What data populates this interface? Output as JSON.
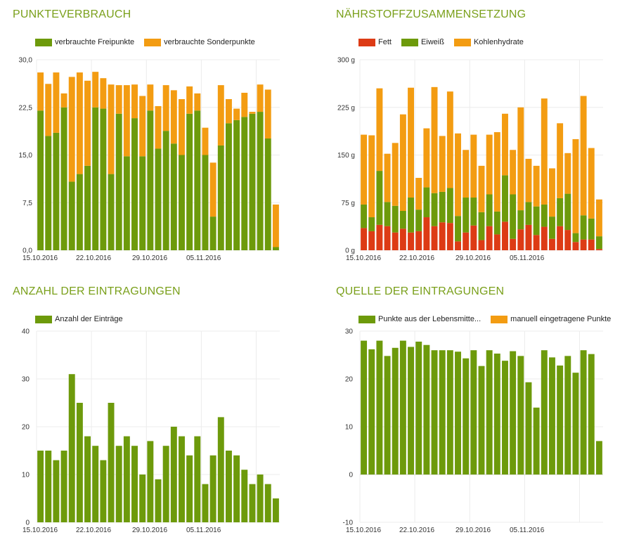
{
  "colors": {
    "green": "#6d9a0b",
    "orange": "#f39c12",
    "red": "#dd3b15",
    "title": "#7aa01b",
    "grid": "#ececec"
  },
  "chart_data": [
    {
      "id": "punkteverbrauch",
      "title": "PUNKTEVERBRAUCH",
      "type": "bar",
      "stacked": true,
      "legend": [
        "verbrauchte Freipunkte",
        "verbrauchte Sonderpunkte"
      ],
      "x_tick_labels": [
        "15.10.2016",
        "22.10.2016",
        "29.10.2016",
        "05.11.2016"
      ],
      "y_tick_labels": [
        "30,0",
        "22,5",
        "15,0",
        "7,5",
        "0,0"
      ],
      "ylim": [
        0,
        30
      ],
      "grid": true,
      "series": [
        {
          "name": "verbrauchte Freipunkte",
          "color": "#6d9a0b",
          "values": [
            22,
            18,
            18.5,
            22.5,
            10.8,
            12,
            13.3,
            22.5,
            22.3,
            12,
            21.5,
            14.8,
            20.8,
            14.8,
            22,
            16,
            18.8,
            16.8,
            15,
            21.5,
            22,
            15,
            5.3,
            16.5,
            20,
            20.5,
            21,
            21.5,
            21.8,
            17.6,
            0.5
          ]
        },
        {
          "name": "verbrauchte Sonderpunkte",
          "color": "#f39c12",
          "values": [
            6,
            8.2,
            9.5,
            2.2,
            16.5,
            16,
            13.4,
            5.6,
            4.8,
            14.1,
            4.5,
            11.2,
            5.3,
            9.5,
            4.1,
            6.7,
            7.2,
            8.4,
            8.8,
            4.3,
            2.7,
            4.3,
            8.5,
            9.5,
            3.8,
            1.8,
            3.8,
            0.3,
            4.3,
            7.7,
            6.7
          ]
        }
      ]
    },
    {
      "id": "naehrstoffe",
      "title": "NÄHRSTOFFZUSAMMENSETZUNG",
      "type": "bar",
      "stacked": true,
      "legend": [
        "Fett",
        "Eiweiß",
        "Kohlenhydrate"
      ],
      "x_tick_labels": [
        "15.10.2016",
        "22.10.2016",
        "29.10.2016",
        "05.11.2016"
      ],
      "y_tick_labels": [
        "300 g",
        "225 g",
        "150 g",
        "75 g",
        "0 g"
      ],
      "ylim": [
        0,
        300
      ],
      "grid": true,
      "series": [
        {
          "name": "Fett",
          "color": "#dd3b15",
          "values": [
            35,
            30,
            40,
            38,
            28,
            34,
            28,
            30,
            52,
            38,
            44,
            43,
            14,
            28,
            39,
            16,
            38,
            25,
            45,
            18,
            33,
            40,
            24,
            37,
            18,
            38,
            32,
            13,
            17,
            17,
            2
          ]
        },
        {
          "name": "Eiweiß",
          "color": "#6d9a0b",
          "values": [
            37,
            22,
            85,
            38,
            42,
            28,
            55,
            34,
            47,
            52,
            48,
            55,
            40,
            55,
            44,
            44,
            50,
            36,
            73,
            70,
            30,
            36,
            45,
            35,
            35,
            44,
            57,
            14,
            38,
            33,
            20
          ]
        },
        {
          "name": "Kohlenhydrate",
          "color": "#f39c12",
          "values": [
            110,
            129,
            130,
            76,
            99,
            152,
            173,
            50,
            93,
            167,
            88,
            152,
            130,
            75,
            99,
            73,
            94,
            125,
            97,
            70,
            162,
            68,
            64,
            167,
            76,
            118,
            64,
            148,
            188,
            111,
            58
          ]
        }
      ]
    },
    {
      "id": "anzahl",
      "title": "ANZAHL DER EINTRAGUNGEN",
      "type": "bar",
      "stacked": false,
      "legend": [
        "Anzahl der Einträge"
      ],
      "x_tick_labels": [
        "15.10.2016",
        "22.10.2016",
        "29.10.2016",
        "05.11.2016"
      ],
      "y_tick_labels": [
        "40",
        "30",
        "20",
        "10",
        "0"
      ],
      "ylim": [
        0,
        40
      ],
      "grid": true,
      "series": [
        {
          "name": "Anzahl der Einträge",
          "color": "#6d9a0b",
          "values": [
            15,
            15,
            13,
            15,
            31,
            25,
            18,
            16,
            13,
            25,
            16,
            18,
            16,
            10,
            17,
            9,
            16,
            20,
            18,
            14,
            18,
            8,
            14,
            22,
            15,
            14,
            11,
            8,
            10,
            8,
            5
          ]
        }
      ]
    },
    {
      "id": "quelle",
      "title": "QUELLE DER EINTRAGUNGEN",
      "type": "bar",
      "stacked": true,
      "legend": [
        "Punkte aus der Lebensmitte...",
        "manuell eingetragene Punkte"
      ],
      "x_tick_labels": [
        "15.10.2016",
        "22.10.2016",
        "29.10.2016",
        "05.11.2016"
      ],
      "y_tick_labels": [
        "30",
        "20",
        "10",
        "0",
        "-10"
      ],
      "ylim": [
        -10,
        30
      ],
      "grid": true,
      "series": [
        {
          "name": "Punkte aus der Lebensmitte...",
          "color": "#6d9a0b",
          "values": [
            28,
            26.2,
            28,
            24.8,
            26.5,
            28,
            26.7,
            27.8,
            27.1,
            26,
            26,
            26,
            25.7,
            24.3,
            26,
            22.7,
            26,
            25.3,
            23.8,
            25.8,
            24.8,
            19.3,
            14,
            26,
            24.5,
            22.8,
            24.8,
            21.3,
            26,
            25.2,
            7
          ]
        },
        {
          "name": "manuell eingetragene Punkte",
          "color": "#f39c12",
          "values": [
            0,
            0,
            0,
            0,
            0,
            0,
            0,
            0,
            0,
            0,
            0,
            0,
            0,
            0,
            0,
            0,
            0,
            0,
            0,
            0,
            0,
            0,
            0,
            0,
            0,
            0,
            0,
            0,
            0,
            0,
            0
          ]
        }
      ]
    }
  ]
}
